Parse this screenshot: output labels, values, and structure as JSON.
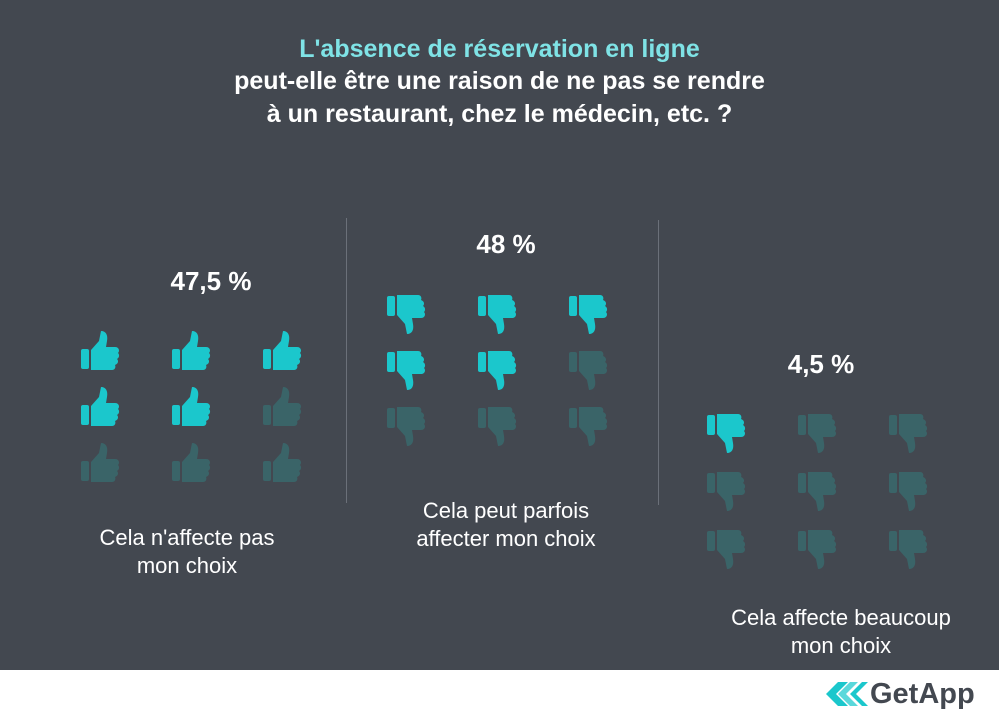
{
  "title": {
    "line1": "L'absence de réservation en ligne",
    "line2": "peut-elle être une raison de ne pas se rendre",
    "line3": "à un restaurant, chez le médecin, etc. ?"
  },
  "colors": {
    "background": "#434850",
    "accent": "#1bc7cc",
    "muted": "#3a6468",
    "title_accent": "#7fe3e6"
  },
  "chart_data": {
    "type": "pictogram",
    "title": "L'absence de réservation en ligne peut-elle être une raison de ne pas se rendre à un restaurant, chez le médecin, etc. ?",
    "icons_per_group": 9,
    "series": [
      {
        "name": "Cela n'affecte pas mon choix",
        "value": 47.5,
        "label": "47,5 %",
        "caption": [
          "Cela n'affecte pas",
          "mon choix"
        ],
        "icon": "thumbs-up-icon",
        "highlighted_icons": 5
      },
      {
        "name": "Cela peut parfois affecter mon choix",
        "value": 48,
        "label": "48 %",
        "caption": [
          "Cela peut parfois",
          "affecter mon choix"
        ],
        "icon": "thumbs-down-icon",
        "highlighted_icons": 5
      },
      {
        "name": "Cela affecte beaucoup mon choix",
        "value": 4.5,
        "label": "4,5 %",
        "caption": [
          "Cela affecte beaucoup",
          "mon choix"
        ],
        "icon": "thumbs-down-icon",
        "highlighted_icons": 1
      }
    ]
  },
  "brand": {
    "name": "GetApp",
    "logo_icon": "getapp-chevrons-icon"
  }
}
